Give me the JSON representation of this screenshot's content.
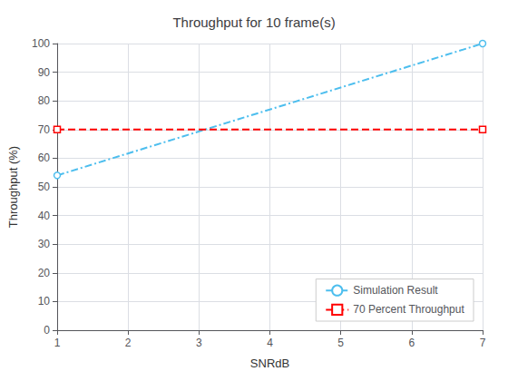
{
  "chart_data": {
    "type": "line",
    "title": "Throughput for 10 frame(s)",
    "xlabel": "SNRdB",
    "ylabel": "Throughput (%)",
    "x": [
      1,
      7
    ],
    "series": [
      {
        "name": "Simulation Result",
        "color": "#4DBEEE",
        "values": [
          54,
          100
        ],
        "marker": "circle",
        "line_style": "dashdot"
      },
      {
        "name": "70 Percent Throughput",
        "color": "#FF0000",
        "values": [
          70,
          70
        ],
        "marker": "square",
        "line_style": "dashed"
      }
    ],
    "xlim": [
      1,
      7
    ],
    "ylim": [
      0,
      100
    ],
    "xticks": [
      1,
      2,
      3,
      4,
      5,
      6,
      7
    ],
    "yticks": [
      0,
      10,
      20,
      30,
      40,
      50,
      60,
      70,
      80,
      90,
      100
    ],
    "grid": true,
    "legend": "lower right"
  }
}
